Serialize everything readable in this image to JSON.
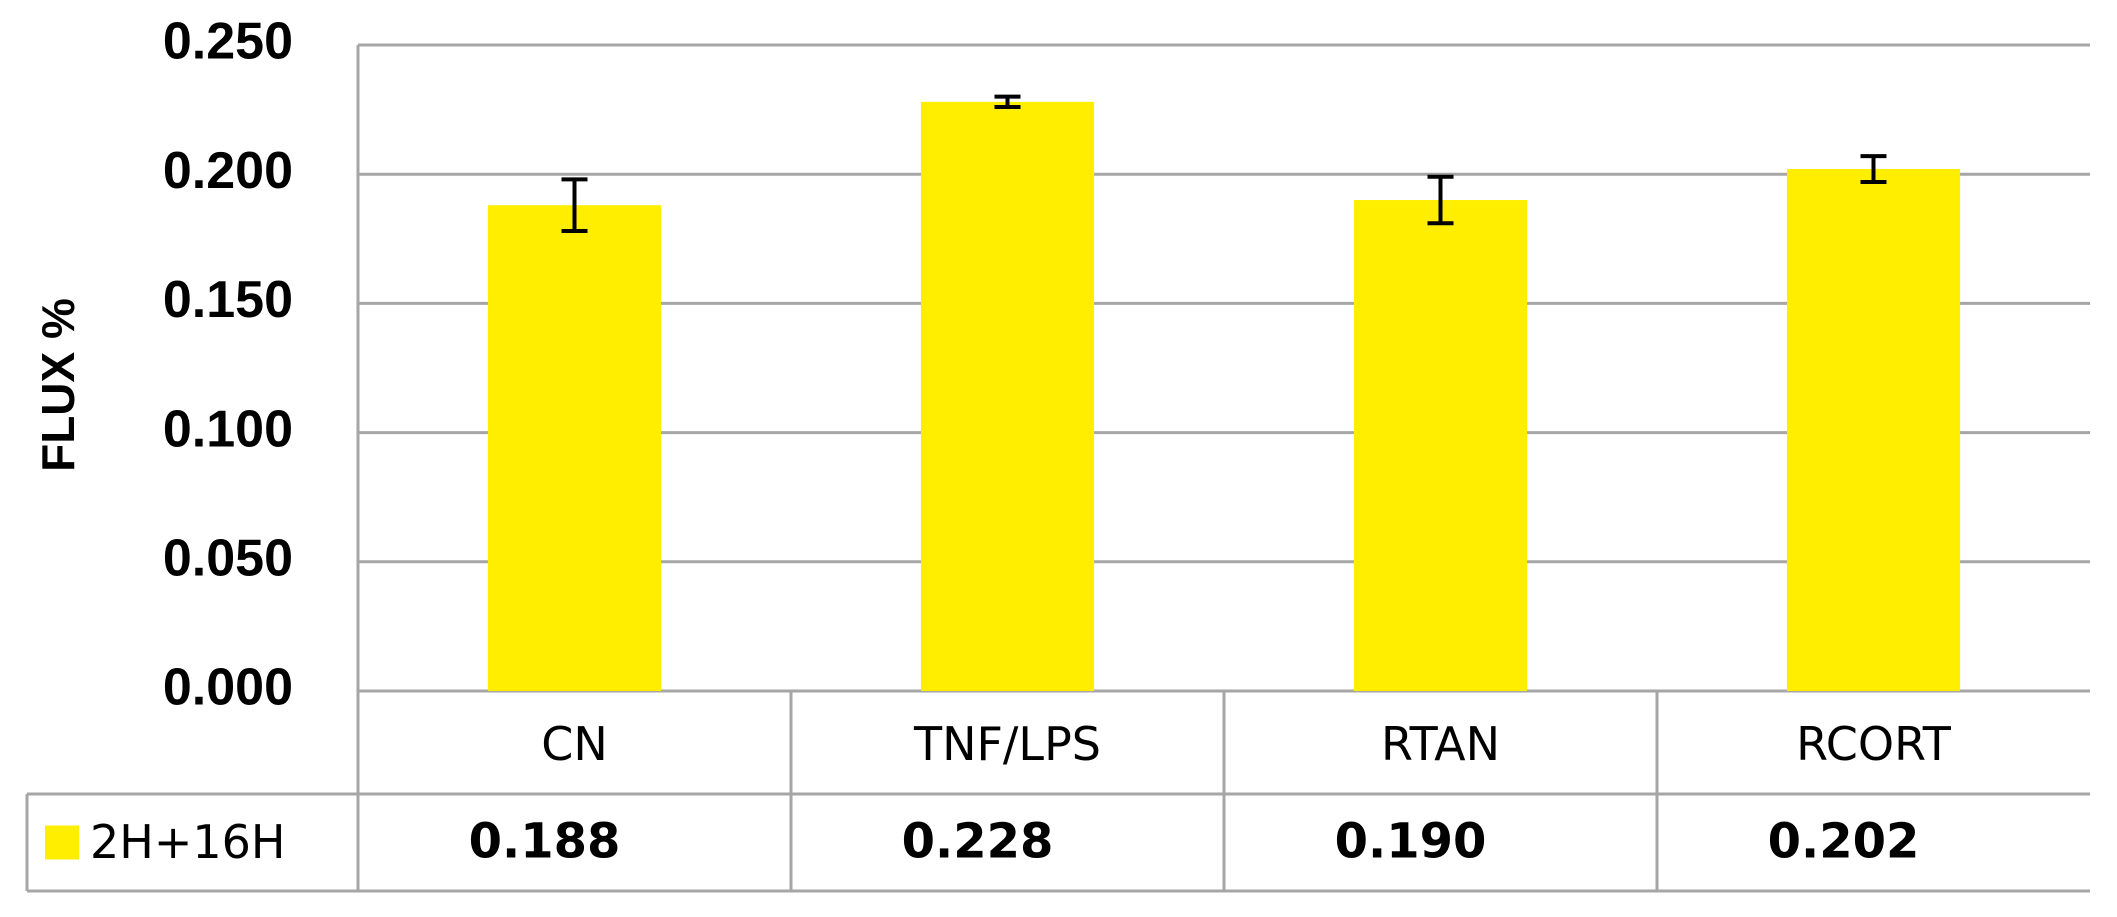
{
  "chart_data": {
    "type": "bar",
    "y_label": "FLUX %",
    "categories": [
      "CN",
      "TNF/LPS",
      "RTAN",
      "RCORT"
    ],
    "series": [
      {
        "name": "2H+16H",
        "color": "#ffee00",
        "values": [
          0.188,
          0.228,
          0.19,
          0.202
        ],
        "value_labels": [
          "0.188",
          "0.228",
          "0.190",
          "0.202"
        ],
        "errors": [
          0.01,
          0.002,
          0.009,
          0.005
        ]
      }
    ],
    "ylim": [
      0,
      0.25
    ],
    "yticks": [
      {
        "value": 0,
        "label": "0.000"
      },
      {
        "value": 0.05,
        "label": "0.050"
      },
      {
        "value": 0.1,
        "label": "0.100"
      },
      {
        "value": 0.15,
        "label": "0.150"
      },
      {
        "value": 0.2,
        "label": "0.200"
      },
      {
        "value": 0.25,
        "label": "0.250"
      }
    ],
    "grid": true
  }
}
